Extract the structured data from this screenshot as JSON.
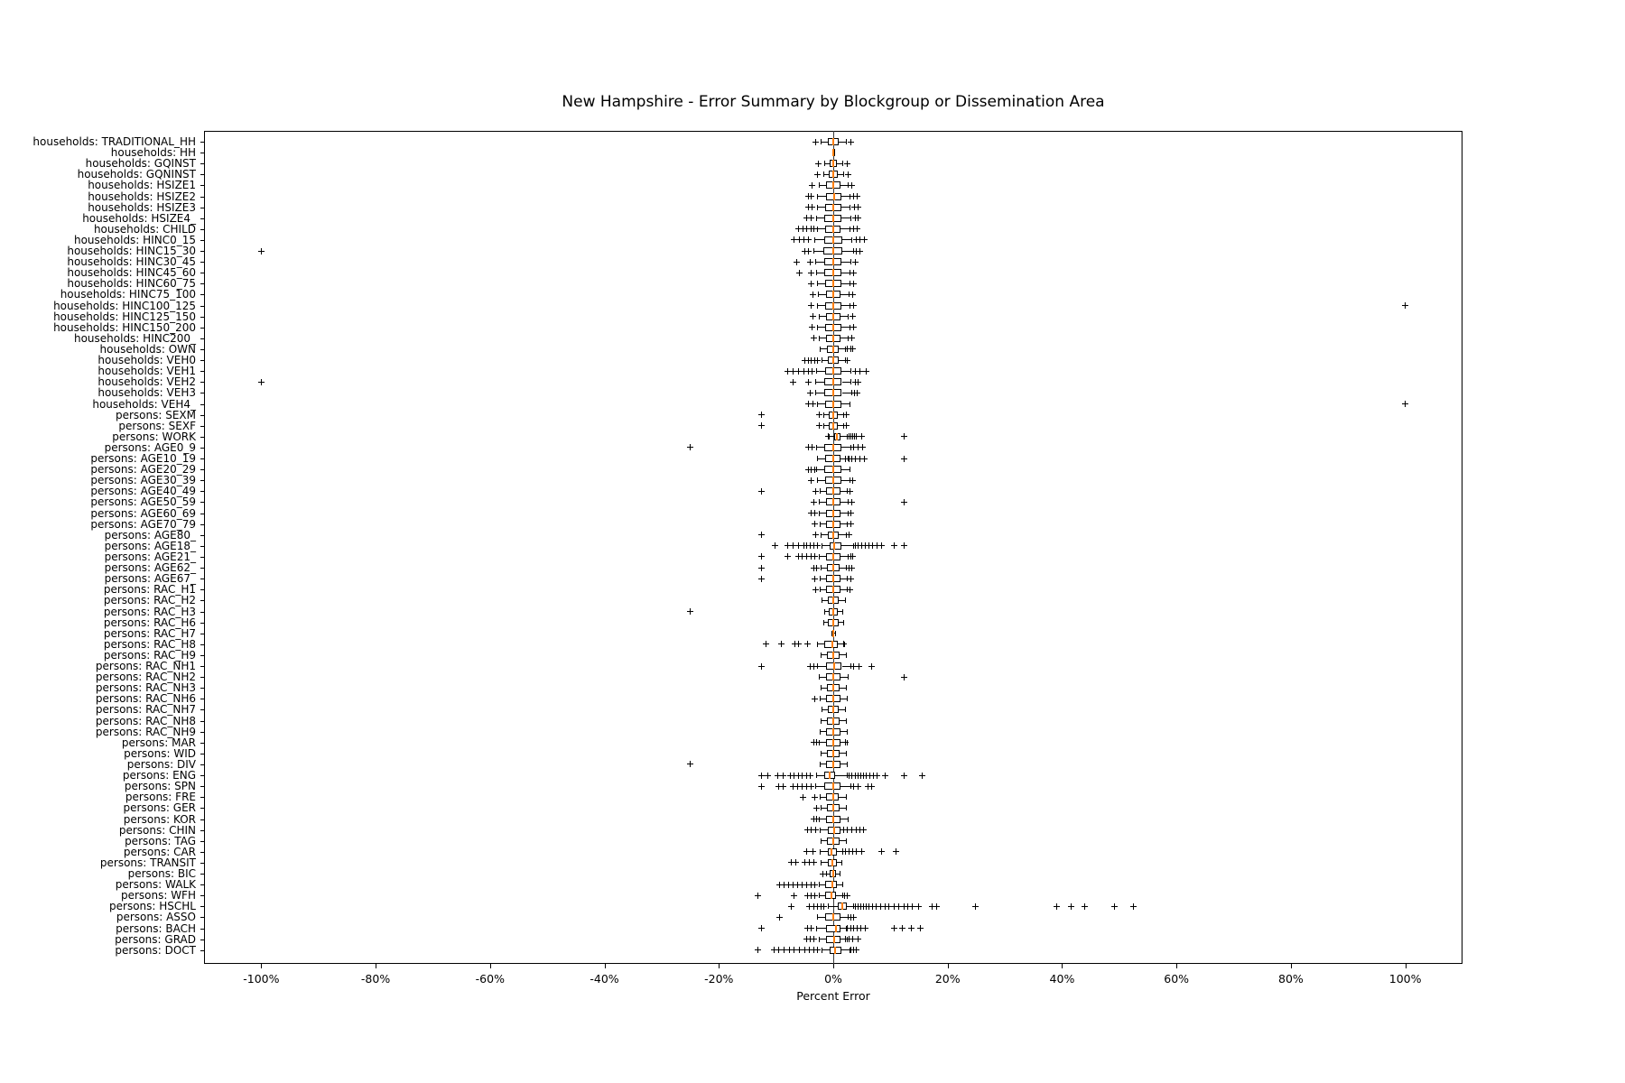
{
  "chart_data": {
    "type": "boxplot",
    "orientation": "horizontal",
    "title": "New Hampshire - Error Summary by Blockgroup or Dissemination Area",
    "xlabel": "Percent Error",
    "xlim": [
      -110,
      110
    ],
    "xticks": [
      -100,
      -80,
      -60,
      -40,
      -20,
      0,
      20,
      40,
      60,
      80,
      100
    ],
    "xtick_labels": [
      "-100%",
      "-80%",
      "-60%",
      "-40%",
      "-20%",
      "0%",
      "20%",
      "40%",
      "60%",
      "80%",
      "100%"
    ],
    "grid": false,
    "zero_line": true,
    "legend": "none",
    "colors": {
      "box_edge": "#000000",
      "median": "#ff7f0e",
      "whisker": "#000000",
      "flier": "#000000",
      "zero_line": "#3a3a3a",
      "background": "#ffffff"
    },
    "units": "percent",
    "rows": [
      {
        "label": "households: TRADITIONAL_HH",
        "whislo": -2.2,
        "q1": -0.9,
        "med": 0,
        "q3": 0.9,
        "whishi": 2.2,
        "fliers": [
          -3,
          3
        ]
      },
      {
        "label": "households: HH",
        "whislo": -0.05,
        "q1": -0.02,
        "med": 0,
        "q3": 0.02,
        "whishi": 0.05,
        "fliers": []
      },
      {
        "label": "households: GQINST",
        "whislo": -1.6,
        "q1": -0.7,
        "med": 0,
        "q3": 0.7,
        "whishi": 1.6,
        "fliers": [
          -2.6,
          2.4
        ]
      },
      {
        "label": "households: GQNINST",
        "whislo": -1.8,
        "q1": -0.8,
        "med": 0,
        "q3": 0.8,
        "whishi": 1.8,
        "fliers": [
          -2.7,
          2.6
        ]
      },
      {
        "label": "households: HSIZE1",
        "whislo": -2.6,
        "q1": -1.2,
        "med": 0,
        "q3": 1.2,
        "whishi": 2.6,
        "fliers": [
          -3.7,
          3.3
        ]
      },
      {
        "label": "households: HSIZE2",
        "whislo": -2.9,
        "q1": -1.3,
        "med": 0.1,
        "q3": 1.4,
        "whishi": 2.9,
        "fliers": [
          -4.4,
          -3.8,
          3.6,
          4.2
        ]
      },
      {
        "label": "households: HSIZE3",
        "whislo": -2.9,
        "q1": -1.4,
        "med": 0,
        "q3": 1.4,
        "whishi": 2.9,
        "fliers": [
          -4.3,
          -3.7,
          3.7,
          4.3
        ]
      },
      {
        "label": "households: HSIZE4_",
        "whislo": -3,
        "q1": -1.5,
        "med": 0,
        "q3": 1.4,
        "whishi": 3,
        "fliers": [
          -4.6,
          -3.9,
          3.8,
          4.4
        ]
      },
      {
        "label": "households: CHILD",
        "whislo": -2.9,
        "q1": -1.4,
        "med": 0,
        "q3": 1.3,
        "whishi": 2.8,
        "fliers": [
          -6,
          -5.3,
          -4.6,
          -3.9,
          -3.4,
          3.6,
          4.2
        ]
      },
      {
        "label": "households: HINC0_15",
        "whislo": -3.3,
        "q1": -1.6,
        "med": 0,
        "q3": 1.5,
        "whishi": 3.2,
        "fliers": [
          -6.8,
          -5.9,
          -5.1,
          -4.3,
          4,
          4.7,
          5.5
        ]
      },
      {
        "label": "households: HINC15_30",
        "whislo": -3.5,
        "q1": -1.7,
        "med": 0,
        "q3": 1.6,
        "whishi": 3.4,
        "fliers": [
          -100,
          -5,
          -4.3,
          4.1,
          4.7
        ]
      },
      {
        "label": "households: HINC30_45",
        "whislo": -3.2,
        "q1": -1.6,
        "med": 0,
        "q3": 1.4,
        "whishi": 3,
        "fliers": [
          -6.4,
          -4.1,
          3.8
        ]
      },
      {
        "label": "households: HINC45_60",
        "whislo": -3,
        "q1": -1.5,
        "med": 0,
        "q3": 1.4,
        "whishi": 2.9,
        "fliers": [
          -5.9,
          -3.9,
          3.6
        ]
      },
      {
        "label": "households: HINC60_75",
        "whislo": -2.8,
        "q1": -1.4,
        "med": 0,
        "q3": 1.4,
        "whishi": 2.8,
        "fliers": [
          -3.8,
          3.6
        ]
      },
      {
        "label": "households: HINC75_100",
        "whislo": -2.7,
        "q1": -1.3,
        "med": 0,
        "q3": 1.3,
        "whishi": 2.7,
        "fliers": [
          -3.6,
          3.4
        ]
      },
      {
        "label": "households: HINC100_125",
        "whislo": -2.8,
        "q1": -1.4,
        "med": 0,
        "q3": 1.4,
        "whishi": 2.8,
        "fliers": [
          -3.8,
          3.6,
          100
        ]
      },
      {
        "label": "households: HINC125_150",
        "whislo": -2.6,
        "q1": -1.3,
        "med": 0,
        "q3": 1.3,
        "whishi": 2.6,
        "fliers": [
          -3.5,
          3.4
        ]
      },
      {
        "label": "households: HINC150_200",
        "whislo": -2.8,
        "q1": -1.4,
        "med": 0,
        "q3": 1.4,
        "whishi": 2.8,
        "fliers": [
          -3.7,
          3.6
        ]
      },
      {
        "label": "households: HINC200_",
        "whislo": -2.6,
        "q1": -1.3,
        "med": 0,
        "q3": 1.3,
        "whishi": 2.6,
        "fliers": [
          -3.4,
          3.3
        ]
      },
      {
        "label": "households: OWN",
        "whislo": -2.3,
        "q1": -1.1,
        "med": 0,
        "q3": 1,
        "whishi": 2.1,
        "fliers": [
          2.5,
          3,
          3.4
        ]
      },
      {
        "label": "households: VEH0",
        "whislo": -2.1,
        "q1": -1,
        "med": 0,
        "q3": 1,
        "whishi": 2,
        "fliers": [
          -5,
          -4.4,
          -3.8,
          -3.2,
          -2.7,
          2.5
        ]
      },
      {
        "label": "households: VEH1",
        "whislo": -3,
        "q1": -1.4,
        "med": 0,
        "q3": 1.4,
        "whishi": 3,
        "fliers": [
          -8,
          -7,
          -6.1,
          -5.2,
          -4.4,
          -3.7,
          3.8,
          4.6,
          5.8
        ]
      },
      {
        "label": "households: VEH2",
        "whislo": -3.1,
        "q1": -1.5,
        "med": 0,
        "q3": 1.5,
        "whishi": 3,
        "fliers": [
          -100,
          -7,
          -4.4,
          3.8,
          4.4
        ]
      },
      {
        "label": "households: VEH3",
        "whislo": -3.2,
        "q1": -1.5,
        "med": 0,
        "q3": 1.5,
        "whishi": 3.2,
        "fliers": [
          -4,
          3.7,
          4.2
        ]
      },
      {
        "label": "households: VEH4_",
        "whislo": -2.9,
        "q1": -1.4,
        "med": 0,
        "q3": 1.4,
        "whishi": 2.8,
        "fliers": [
          -4.4,
          -3.6,
          100
        ]
      },
      {
        "label": "persons: SEXM",
        "whislo": -1.8,
        "q1": -0.8,
        "med": 0,
        "q3": 0.8,
        "whishi": 1.8,
        "fliers": [
          -12.6,
          -2.4,
          2.3
        ]
      },
      {
        "label": "persons: SEXF",
        "whislo": -1.8,
        "q1": -0.8,
        "med": 0,
        "q3": 0.8,
        "whishi": 1.8,
        "fliers": [
          -12.6,
          -2.4,
          2.3
        ]
      },
      {
        "label": "persons: WORK",
        "whislo": -0.8,
        "q1": 0.2,
        "med": 0.7,
        "q3": 1.3,
        "whishi": 2.4,
        "fliers": [
          -0.9,
          2.8,
          3.1,
          3.4,
          3.7,
          4,
          4.9,
          12.4
        ]
      },
      {
        "label": "persons: AGE0_9",
        "whislo": -3,
        "q1": -1.5,
        "med": 0,
        "q3": 1.4,
        "whishi": 3,
        "fliers": [
          -25,
          -4.4,
          -3.7,
          3.6,
          4.3,
          5.2
        ]
      },
      {
        "label": "persons: AGE10_19",
        "whislo": -2.8,
        "q1": -1.4,
        "med": 0,
        "q3": 1.2,
        "whishi": 2.6,
        "fliers": [
          2.1,
          2.7,
          3.3,
          3.9,
          4.6,
          5.4,
          12.4
        ]
      },
      {
        "label": "persons: AGE20_29",
        "whislo": -3,
        "q1": -1.5,
        "med": 0,
        "q3": 1.4,
        "whishi": 2.8,
        "fliers": [
          -4.4,
          -3.8,
          -3.2
        ]
      },
      {
        "label": "persons: AGE30_39",
        "whislo": -2.8,
        "q1": -1.4,
        "med": 0,
        "q3": 1.4,
        "whishi": 2.8,
        "fliers": [
          -3.8,
          3.4
        ]
      },
      {
        "label": "persons: AGE40_49",
        "whislo": -2.4,
        "q1": -1.2,
        "med": 0,
        "q3": 1.2,
        "whishi": 2.4,
        "fliers": [
          -12.6,
          -3,
          2.9
        ]
      },
      {
        "label": "persons: AGE50_59",
        "whislo": -2.6,
        "q1": -1.3,
        "med": 0,
        "q3": 1.3,
        "whishi": 2.6,
        "fliers": [
          -3.4,
          3.2,
          12.4
        ]
      },
      {
        "label": "persons: AGE60_69",
        "whislo": -2.6,
        "q1": -1.3,
        "med": 0,
        "q3": 1.3,
        "whishi": 2.6,
        "fliers": [
          -3.8,
          -3.2,
          3
        ]
      },
      {
        "label": "persons: AGE70_79",
        "whislo": -2.4,
        "q1": -1.2,
        "med": 0,
        "q3": 1.2,
        "whishi": 2.4,
        "fliers": [
          -3.2,
          3
        ]
      },
      {
        "label": "persons: AGE80_",
        "whislo": -2.2,
        "q1": -1,
        "med": 0,
        "q3": 1,
        "whishi": 2.2,
        "fliers": [
          -12.6,
          -3,
          2.8
        ]
      },
      {
        "label": "persons: AGE18_",
        "whislo": -2.1,
        "q1": -0.6,
        "med": 0.1,
        "q3": 1.4,
        "whishi": 3.4,
        "fliers": [
          -10.2,
          -8,
          -7,
          -6,
          -5.2,
          -4.6,
          -4,
          -3.4,
          -2.8,
          3.8,
          4.4,
          5,
          5.6,
          6.2,
          6.9,
          7.6,
          8.4,
          10.7,
          12.4
        ]
      },
      {
        "label": "persons: AGE21_",
        "whislo": -2.6,
        "q1": -1.2,
        "med": 0,
        "q3": 1.2,
        "whishi": 2.6,
        "fliers": [
          -12.6,
          -8,
          -6.1,
          -5.5,
          -4.6,
          -3.8,
          -3.2,
          3,
          3.4
        ]
      },
      {
        "label": "persons: AGE62_",
        "whislo": -2.2,
        "q1": -1.1,
        "med": 0,
        "q3": 1.1,
        "whishi": 2.2,
        "fliers": [
          -12.6,
          -3.4,
          -2.9,
          2.7,
          3.2
        ]
      },
      {
        "label": "persons: AGE67_",
        "whislo": -2.4,
        "q1": -1.2,
        "med": 0,
        "q3": 1.2,
        "whishi": 2.4,
        "fliers": [
          -12.6,
          -3.2,
          3
        ]
      },
      {
        "label": "persons: RAC_H1",
        "whislo": -2.4,
        "q1": -1.2,
        "med": 0,
        "q3": 1.2,
        "whishi": 2.4,
        "fliers": [
          -3,
          2.9
        ]
      },
      {
        "label": "persons: RAC_H2",
        "whislo": -2,
        "q1": -1,
        "med": 0,
        "q3": 1,
        "whishi": 2,
        "fliers": []
      },
      {
        "label": "persons: RAC_H3",
        "whislo": -1.6,
        "q1": -0.8,
        "med": 0,
        "q3": 0.8,
        "whishi": 1.6,
        "fliers": [
          -25
        ]
      },
      {
        "label": "persons: RAC_H6",
        "whislo": -1.8,
        "q1": -0.9,
        "med": 0,
        "q3": 0.9,
        "whishi": 1.8,
        "fliers": []
      },
      {
        "label": "persons: RAC_H7",
        "whislo": -0.3,
        "q1": -0.1,
        "med": 0,
        "q3": 0.1,
        "whishi": 0.3,
        "fliers": []
      },
      {
        "label": "persons: RAC_H8",
        "whislo": -2.9,
        "q1": -1.6,
        "med": -0.2,
        "q3": 0.8,
        "whishi": 1.9,
        "fliers": [
          -11.8,
          -9,
          -6.7,
          -6,
          -4.5,
          1.8
        ]
      },
      {
        "label": "persons: RAC_H9",
        "whislo": -2.2,
        "q1": -1.1,
        "med": 0,
        "q3": 1.1,
        "whishi": 2.2,
        "fliers": []
      },
      {
        "label": "persons: RAC_NH1",
        "whislo": -2.8,
        "q1": -1.2,
        "med": 0.2,
        "q3": 1.5,
        "whishi": 3,
        "fliers": [
          -12.6,
          -4,
          -3.4,
          3.6,
          4.5,
          6.7
        ]
      },
      {
        "label": "persons: RAC_NH2",
        "whislo": -2.6,
        "q1": -1.3,
        "med": 0,
        "q3": 1.3,
        "whishi": 2.6,
        "fliers": [
          12.4
        ]
      },
      {
        "label": "persons: RAC_NH3",
        "whislo": -2.2,
        "q1": -1.1,
        "med": 0,
        "q3": 1.1,
        "whishi": 2.2,
        "fliers": []
      },
      {
        "label": "persons: RAC_NH6",
        "whislo": -2.4,
        "q1": -1.2,
        "med": 0,
        "q3": 1.2,
        "whishi": 2.4,
        "fliers": [
          -3.2
        ]
      },
      {
        "label": "persons: RAC_NH7",
        "whislo": -2,
        "q1": -1,
        "med": 0,
        "q3": 1,
        "whishi": 2,
        "fliers": []
      },
      {
        "label": "persons: RAC_NH8",
        "whislo": -2.2,
        "q1": -1.1,
        "med": 0,
        "q3": 1.1,
        "whishi": 2.2,
        "fliers": []
      },
      {
        "label": "persons: RAC_NH9",
        "whislo": -2.4,
        "q1": -1.2,
        "med": 0,
        "q3": 1.2,
        "whishi": 2.4,
        "fliers": []
      },
      {
        "label": "persons: MAR",
        "whislo": -2.6,
        "q1": -1.3,
        "med": 0,
        "q3": 1.2,
        "whishi": 2.4,
        "fliers": [
          -3.4,
          -2.9,
          2.2
        ]
      },
      {
        "label": "persons: WID",
        "whislo": -2.2,
        "q1": -1.1,
        "med": 0,
        "q3": 1.1,
        "whishi": 2.2,
        "fliers": []
      },
      {
        "label": "persons: DIV",
        "whislo": -2.4,
        "q1": -1.2,
        "med": 0,
        "q3": 1.2,
        "whishi": 2.4,
        "fliers": [
          -25
        ]
      },
      {
        "label": "persons: ENG",
        "whislo": -3,
        "q1": -1.6,
        "med": -0.7,
        "q3": 0.3,
        "whishi": 2.4,
        "fliers": [
          -12.6,
          -11.4,
          -9.7,
          -8.7,
          -7.5,
          -6.8,
          -6.1,
          -5.4,
          -4.7,
          -4,
          2.8,
          3.3,
          3.8,
          4.3,
          4.8,
          5.3,
          5.8,
          6.4,
          7,
          7.7,
          9,
          12.4,
          15.6
        ]
      },
      {
        "label": "persons: SPN",
        "whislo": -3.2,
        "q1": -1.5,
        "med": 0,
        "q3": 1.2,
        "whishi": 3,
        "fliers": [
          -12.6,
          -9.5,
          -8.7,
          -7,
          -6.2,
          -5.4,
          -4.6,
          -3.8,
          3.6,
          4.4,
          6,
          6.7
        ]
      },
      {
        "label": "persons: FRE",
        "whislo": -2.4,
        "q1": -1.2,
        "med": 0,
        "q3": 1,
        "whishi": 2.2,
        "fliers": [
          -5.3,
          -3.2
        ]
      },
      {
        "label": "persons: GER",
        "whislo": -2.2,
        "q1": -1.1,
        "med": 0,
        "q3": 1.1,
        "whishi": 2.2,
        "fliers": [
          -2.9
        ]
      },
      {
        "label": "persons: KOR",
        "whislo": -2.6,
        "q1": -1.3,
        "med": 0,
        "q3": 1.3,
        "whishi": 2.6,
        "fliers": [
          -3.4,
          -2.9
        ]
      },
      {
        "label": "persons: CHIN",
        "whislo": -2.4,
        "q1": -1,
        "med": 0.1,
        "q3": 1.2,
        "whishi": 2.4,
        "fliers": [
          -4.5,
          -3.8,
          -3.1,
          1.8,
          2.5,
          3.2,
          4,
          4.7,
          5.3
        ]
      },
      {
        "label": "persons: TAG",
        "whislo": -2.2,
        "q1": -1.1,
        "med": 0,
        "q3": 1.1,
        "whishi": 2.2,
        "fliers": []
      },
      {
        "label": "persons: CAR",
        "whislo": -2.3,
        "q1": -1,
        "med": -0.3,
        "q3": 0.6,
        "whishi": 2,
        "fliers": [
          -4.6,
          -3.6,
          1.7,
          2.2,
          2.8,
          3.4,
          4,
          5,
          8.4,
          10.9
        ]
      },
      {
        "label": "persons: TRANSIT",
        "whislo": -2.2,
        "q1": -1,
        "med": -0.2,
        "q3": 0.6,
        "whishi": 1.4,
        "fliers": [
          -7.4,
          -6.6,
          -5,
          -4.2,
          -3.4
        ]
      },
      {
        "label": "persons: BIC",
        "whislo": -1.2,
        "q1": -0.6,
        "med": 0,
        "q3": 0.5,
        "whishi": 1.1,
        "fliers": [
          -1.8
        ]
      },
      {
        "label": "persons: WALK",
        "whislo": -2.6,
        "q1": -1.4,
        "med": -0.2,
        "q3": 0.6,
        "whishi": 1.6,
        "fliers": [
          -9.4,
          -8.6,
          -7.8,
          -7,
          -6.2,
          -5.4,
          -4.6,
          -3.8,
          -3.2
        ]
      },
      {
        "label": "persons: WFH",
        "whislo": -2.6,
        "q1": -1.4,
        "med": -0.3,
        "q3": 0.5,
        "whishi": 1.6,
        "fliers": [
          -13.1,
          -6.9,
          -4.5,
          -3.9,
          -3.3,
          1.9,
          2.5
        ]
      },
      {
        "label": "persons: HSCHL",
        "whislo": -1,
        "q1": 0.8,
        "med": 1.6,
        "q3": 2.3,
        "whishi": 3.4,
        "fliers": [
          -7.4,
          -4.2,
          -3.4,
          -2.8,
          -2.2,
          -1.6,
          3.8,
          4.3,
          4.8,
          5.3,
          5.8,
          6.3,
          6.9,
          7.5,
          8.3,
          9,
          9.7,
          10.6,
          11.5,
          12.4,
          13,
          13.8,
          14.9,
          17.3,
          18.1,
          24.8,
          39,
          41.6,
          44,
          49.2,
          52.4
        ]
      },
      {
        "label": "persons: ASSO",
        "whislo": -2.8,
        "q1": -1.4,
        "med": 0,
        "q3": 1.2,
        "whishi": 2.6,
        "fliers": [
          -9.4,
          3,
          3.5
        ]
      },
      {
        "label": "persons: BACH",
        "whislo": -3,
        "q1": -1.2,
        "med": 0.5,
        "q3": 1.3,
        "whishi": 2.2,
        "fliers": [
          -12.6,
          -4.5,
          -3.8,
          2.4,
          3,
          3.6,
          4.2,
          4.8,
          5.6,
          10.6,
          12,
          13.6,
          15.3
        ]
      },
      {
        "label": "persons: GRAD",
        "whislo": -2.6,
        "q1": -1.2,
        "med": 0.2,
        "q3": 1.2,
        "whishi": 2.4,
        "fliers": [
          -4.6,
          -4,
          -3.4,
          2.2,
          2.8,
          3.4,
          4.3
        ]
      },
      {
        "label": "persons: DOCT",
        "whislo": -2,
        "q1": -0.6,
        "med": 0.3,
        "q3": 1.4,
        "whishi": 2.8,
        "fliers": [
          -13.1,
          -10.4,
          -9.5,
          -8.6,
          -7.7,
          -6.8,
          -5.9,
          -5,
          -4.2,
          -3.4,
          -2.8,
          3,
          3.5,
          4
        ]
      }
    ]
  }
}
